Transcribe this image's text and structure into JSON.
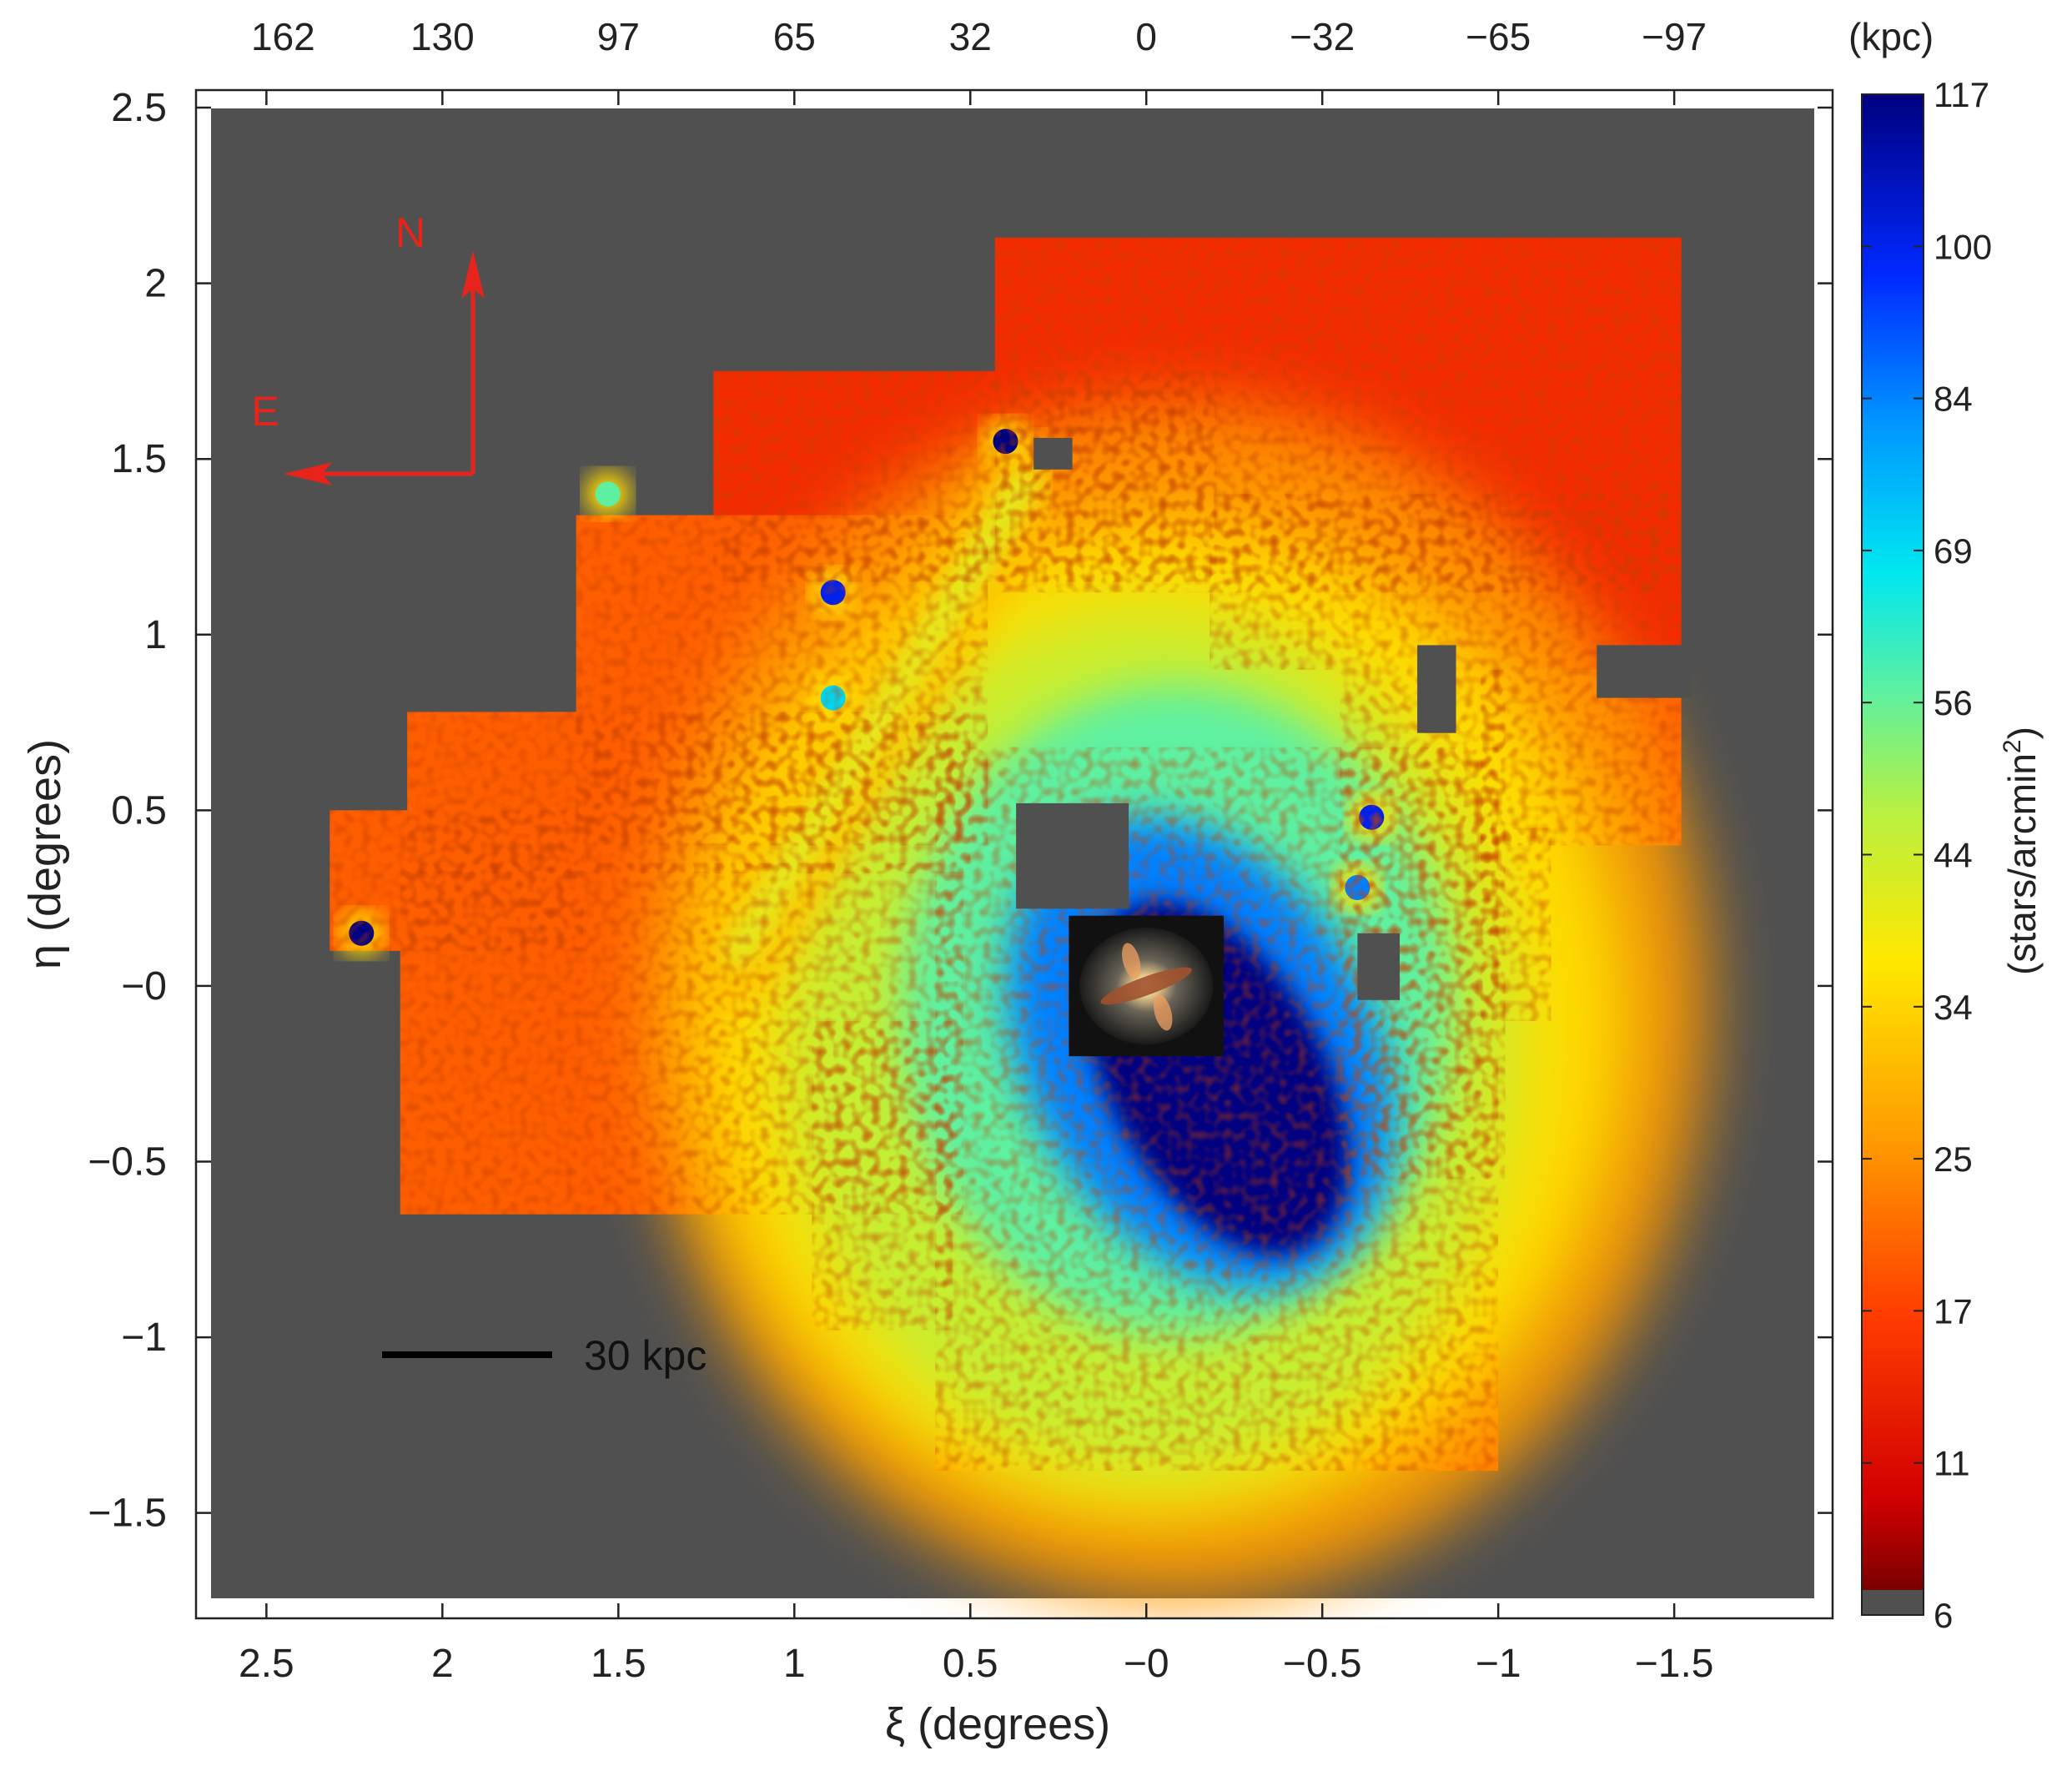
{
  "chart_data": {
    "type": "heatmap",
    "title": "",
    "xlabel": "ξ (degrees)",
    "ylabel": "η (degrees)",
    "xlim": [
      2.7,
      -1.95
    ],
    "ylim": [
      -1.8,
      2.55
    ],
    "x_ticks": [
      2.5,
      2,
      1.5,
      1,
      0.5,
      0,
      -0.5,
      -1,
      -1.5
    ],
    "x_tick_labels": [
      "2.5",
      "2",
      "1.5",
      "1",
      "0.5",
      "−0",
      "−0.5",
      "−1",
      "−1.5"
    ],
    "y_ticks": [
      2.5,
      2,
      1.5,
      1,
      0.5,
      0,
      -0.5,
      -1,
      -1.5
    ],
    "y_tick_labels": [
      "2.5",
      "2",
      "1.5",
      "1",
      "0.5",
      "−0",
      "−0.5",
      "−1",
      "−1.5"
    ],
    "top_axis": {
      "unit_label": "(kpc)",
      "ticks": [
        2.5,
        2,
        1.5,
        1,
        0.5,
        0,
        -0.5,
        -1,
        -1.5
      ],
      "tick_labels": [
        "162",
        "130",
        "97",
        "65",
        "32",
        "0",
        "−32",
        "−65",
        "−97"
      ]
    },
    "colorbar": {
      "label": "(stars/arcmin²)",
      "label_main": "(stars/arcmin",
      "label_sup": "2",
      "label_end": ")",
      "min": 6,
      "max": 117,
      "tick_values": [
        6,
        11,
        17,
        25,
        34,
        44,
        56,
        69,
        84,
        100,
        117
      ],
      "tick_labels": [
        "6",
        "11",
        "17",
        "25",
        "34",
        "44",
        "56",
        "69",
        "84",
        "100",
        "117"
      ]
    },
    "background_color": "#505050",
    "annotations": {
      "north": "N",
      "east": "E",
      "scale_bar": "30 kpc",
      "scale_bar_length_kpc": 30,
      "compass_color": "#e8231c"
    },
    "footprint_fields": [
      {
        "xi": [
          1.23,
          -0.2
        ],
        "eta": [
          1.75,
          1.15
        ]
      },
      {
        "xi": [
          0.43,
          -1.52
        ],
        "eta": [
          2.13,
          1.12
        ]
      },
      {
        "xi": [
          -0.18,
          -1.52
        ],
        "eta": [
          1.4,
          0.9
        ]
      },
      {
        "xi": [
          1.62,
          0.45
        ],
        "eta": [
          1.34,
          0.4
        ]
      },
      {
        "xi": [
          2.1,
          0.5
        ],
        "eta": [
          0.78,
          0.32
        ]
      },
      {
        "xi": [
          2.32,
          1.6
        ],
        "eta": [
          0.5,
          0.1
        ]
      },
      {
        "xi": [
          2.12,
          0.52
        ],
        "eta": [
          0.35,
          -0.65
        ]
      },
      {
        "xi": [
          0.95,
          0.55
        ],
        "eta": [
          -0.1,
          -0.98
        ]
      },
      {
        "xi": [
          0.6,
          -1.0
        ],
        "eta": [
          0.68,
          -1.38
        ]
      },
      {
        "xi": [
          -0.55,
          -1.02
        ],
        "eta": [
          0.9,
          -0.55
        ]
      },
      {
        "xi": [
          -0.95,
          -1.52
        ],
        "eta": [
          0.9,
          0.4
        ]
      },
      {
        "xi": [
          -0.95,
          -1.15
        ],
        "eta": [
          0.45,
          -0.1
        ]
      }
    ],
    "footprint_gaps": [
      {
        "xi": [
          0.37,
          0.05
        ],
        "eta": [
          0.52,
          0.22
        ]
      },
      {
        "xi": [
          -0.77,
          -0.88
        ],
        "eta": [
          0.97,
          0.72
        ]
      },
      {
        "xi": [
          -1.28,
          -1.55
        ],
        "eta": [
          0.97,
          0.82
        ]
      },
      {
        "xi": [
          -0.6,
          -0.72
        ],
        "eta": [
          0.15,
          -0.04
        ]
      },
      {
        "xi": [
          0.32,
          0.21
        ],
        "eta": [
          1.56,
          1.47
        ]
      }
    ],
    "density_features": [
      {
        "feature": "halo core",
        "xi": -0.06,
        "eta": -0.12,
        "peak_density": 117
      },
      {
        "feature": "northern stream",
        "xi_range": [
          1.18,
          0.35
        ],
        "eta_range": [
          0.05,
          1.45
        ],
        "peak_density": 40
      },
      {
        "feature": "dwarf galaxy",
        "xi": 0.4,
        "eta": 1.55,
        "peak_density": 117
      },
      {
        "feature": "dwarf galaxy",
        "xi": 0.89,
        "eta": 1.12,
        "peak_density": 100
      },
      {
        "feature": "dwarf galaxy",
        "xi": 0.89,
        "eta": 0.82,
        "peak_density": 69
      },
      {
        "feature": "dwarf galaxy",
        "xi": 2.23,
        "eta": 0.15,
        "peak_density": 117
      },
      {
        "feature": "dwarf galaxy",
        "xi": -0.64,
        "eta": 0.48,
        "peak_density": 100
      },
      {
        "feature": "dwarf galaxy",
        "xi": -0.6,
        "eta": 0.28,
        "peak_density": 84
      },
      {
        "feature": "dwarf galaxy",
        "xi": 1.53,
        "eta": 1.4,
        "peak_density": 56
      }
    ],
    "inset_image": {
      "description_icon": "galaxy-photo-icon",
      "xi": [
        0.22,
        -0.22
      ],
      "eta": [
        0.2,
        -0.2
      ]
    }
  }
}
